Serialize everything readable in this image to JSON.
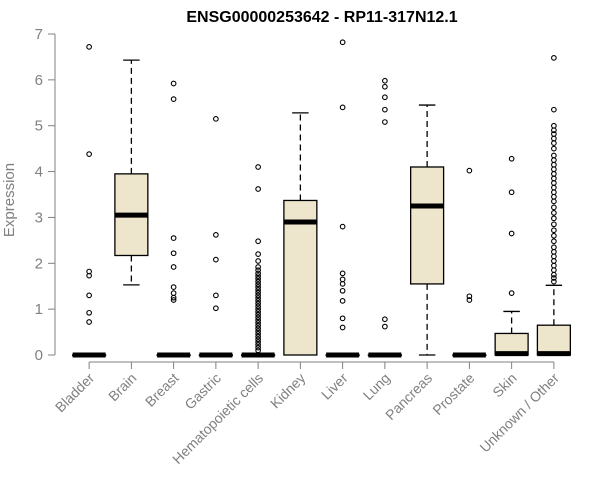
{
  "chart_data": {
    "type": "boxplot",
    "title": "ENSG00000253642 - RP11-317N12.1",
    "xlabel": "",
    "ylabel": "Expression",
    "ylim": [
      0,
      7
    ],
    "yticks": [
      0,
      1,
      2,
      3,
      4,
      5,
      6,
      7
    ],
    "grid": false,
    "colors": {
      "box_fill": "#EDE6CC",
      "box_stroke": "#000000",
      "axis": "#808080",
      "title": "#000000"
    },
    "categories": [
      "Bladder",
      "Brain",
      "Breast",
      "Gastric",
      "Hematopoietic cells",
      "Kidney",
      "Liver",
      "Lung",
      "Pancreas",
      "Prostate",
      "Skin",
      "Unknown / Other"
    ],
    "boxes": [
      {
        "category": "Bladder",
        "q1": 0,
        "median": 0,
        "q3": 0,
        "whisker_low": 0,
        "whisker_high": 0,
        "outliers": [
          6.72,
          4.38,
          1.82,
          1.73,
          1.3,
          0.92,
          0.72
        ]
      },
      {
        "category": "Brain",
        "q1": 2.17,
        "median": 3.05,
        "q3": 3.95,
        "whisker_low": 1.53,
        "whisker_high": 6.43,
        "outliers": []
      },
      {
        "category": "Breast",
        "q1": 0,
        "median": 0,
        "q3": 0,
        "whisker_low": 0,
        "whisker_high": 0,
        "outliers": [
          5.92,
          5.58,
          2.55,
          2.22,
          1.92,
          1.48,
          1.35,
          1.25,
          1.2
        ]
      },
      {
        "category": "Gastric",
        "q1": 0,
        "median": 0,
        "q3": 0,
        "whisker_low": 0,
        "whisker_high": 0,
        "outliers": [
          5.15,
          2.62,
          2.08,
          1.3,
          1.02
        ]
      },
      {
        "category": "Hematopoietic cells",
        "q1": 0,
        "median": 0,
        "q3": 0,
        "whisker_low": 0,
        "whisker_high": 0,
        "outliers": [
          4.1,
          3.62,
          2.48,
          2.2,
          2.05,
          1.92,
          1.85,
          1.78,
          1.72,
          1.66,
          1.6,
          1.54,
          1.48,
          1.42,
          1.36,
          1.3,
          1.24,
          1.18,
          1.12,
          1.06,
          1.0,
          0.94,
          0.88,
          0.82,
          0.76,
          0.7,
          0.64,
          0.58,
          0.52,
          0.46,
          0.4,
          0.34,
          0.28,
          0.22,
          0.16,
          0.1
        ]
      },
      {
        "category": "Kidney",
        "q1": 0,
        "median": 2.9,
        "q3": 3.37,
        "whisker_low": 0,
        "whisker_high": 5.28,
        "outliers": []
      },
      {
        "category": "Liver",
        "q1": 0,
        "median": 0,
        "q3": 0,
        "whisker_low": 0,
        "whisker_high": 0,
        "outliers": [
          6.82,
          5.4,
          2.8,
          1.78,
          1.65,
          1.55,
          1.4,
          1.18,
          0.8,
          0.6
        ]
      },
      {
        "category": "Lung",
        "q1": 0,
        "median": 0,
        "q3": 0,
        "whisker_low": 0,
        "whisker_high": 0,
        "outliers": [
          5.98,
          5.85,
          5.62,
          5.35,
          5.08,
          0.78,
          0.62
        ]
      },
      {
        "category": "Pancreas",
        "q1": 1.55,
        "median": 3.25,
        "q3": 4.1,
        "whisker_low": 0,
        "whisker_high": 5.45,
        "outliers": []
      },
      {
        "category": "Prostate",
        "q1": 0,
        "median": 0,
        "q3": 0,
        "whisker_low": 0,
        "whisker_high": 0,
        "outliers": [
          4.02,
          1.28,
          1.2
        ]
      },
      {
        "category": "Skin",
        "q1": 0,
        "median": 0.03,
        "q3": 0.47,
        "whisker_low": 0,
        "whisker_high": 0.95,
        "outliers": [
          4.28,
          3.55,
          2.65,
          1.35
        ]
      },
      {
        "category": "Unknown / Other",
        "q1": 0,
        "median": 0.03,
        "q3": 0.65,
        "whisker_low": 0,
        "whisker_high": 1.52,
        "outliers": [
          6.48,
          5.35,
          5.0,
          4.9,
          4.82,
          4.72,
          4.62,
          4.5,
          4.35,
          4.25,
          4.15,
          4.05,
          3.95,
          3.85,
          3.75,
          3.65,
          3.55,
          3.45,
          3.35,
          3.22,
          3.1,
          2.98,
          2.85,
          2.72,
          2.6,
          2.48,
          2.35,
          2.25,
          2.15,
          2.05,
          1.95,
          1.85,
          1.75,
          1.68,
          1.6
        ]
      }
    ]
  }
}
